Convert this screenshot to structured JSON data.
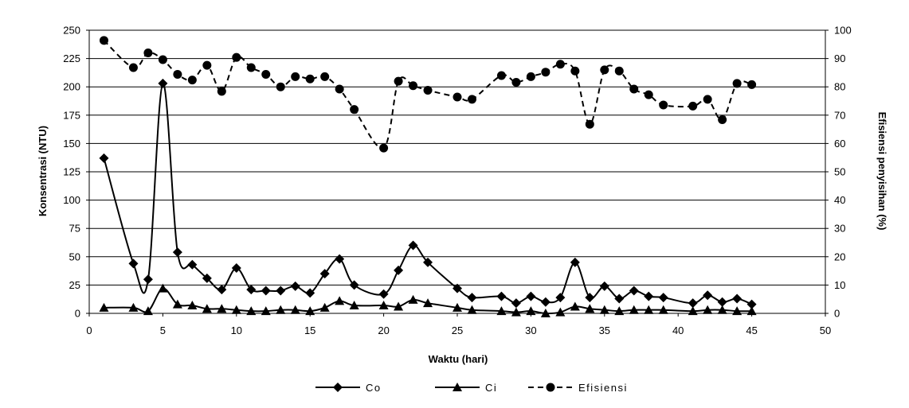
{
  "chart_data": {
    "type": "line",
    "xlabel": "Waktu (hari)",
    "ylabel": "Konsentrasi (NTU)",
    "y2label": "Efisiensi penyisihan (%)",
    "xlim": [
      0,
      50
    ],
    "ylim": [
      0,
      250
    ],
    "y2lim": [
      0,
      100
    ],
    "xticks": [
      "0",
      "5",
      "10",
      "15",
      "20",
      "25",
      "30",
      "35",
      "40",
      "45",
      "50"
    ],
    "yticks": [
      "0",
      "25",
      "50",
      "75",
      "100",
      "125",
      "150",
      "175",
      "200",
      "225",
      "250"
    ],
    "y2ticks": [
      "0",
      "10",
      "20",
      "30",
      "40",
      "50",
      "60",
      "70",
      "80",
      "90",
      "100"
    ],
    "grid": "horizontal",
    "legend_position": "bottom",
    "series": [
      {
        "name": "Co",
        "axis": "left",
        "marker": "diamond",
        "line": "solid",
        "x": [
          1,
          3,
          4,
          5,
          6,
          7,
          8,
          9,
          10,
          11,
          12,
          13,
          14,
          15,
          16,
          17,
          18,
          20,
          21,
          22,
          23,
          25,
          26,
          28,
          29,
          30,
          31,
          32,
          33,
          34,
          35,
          36,
          37,
          38,
          39,
          41,
          42,
          43,
          44,
          45
        ],
        "y": [
          137,
          44,
          30,
          203,
          54,
          43,
          31,
          21,
          40,
          21,
          20,
          20,
          24,
          18,
          35,
          48,
          25,
          17,
          38,
          60,
          45,
          22,
          14,
          15,
          9,
          15,
          10,
          14,
          45,
          14,
          24,
          13,
          20,
          15,
          14,
          9,
          16,
          10,
          13,
          8
        ]
      },
      {
        "name": "Ci",
        "axis": "left",
        "marker": "triangle",
        "line": "solid",
        "x": [
          1,
          3,
          4,
          5,
          6,
          7,
          8,
          9,
          10,
          11,
          12,
          13,
          14,
          15,
          16,
          17,
          18,
          20,
          21,
          22,
          23,
          25,
          26,
          28,
          29,
          30,
          31,
          32,
          33,
          34,
          35,
          36,
          37,
          38,
          39,
          41,
          42,
          43,
          44,
          45
        ],
        "y": [
          5,
          5,
          2,
          22,
          8,
          7,
          4,
          4,
          3,
          2,
          2,
          3,
          3,
          2,
          5,
          11,
          7,
          7,
          6,
          12,
          9,
          5,
          3,
          2,
          1,
          2,
          0,
          1,
          6,
          4,
          3,
          2,
          3,
          3,
          3,
          2,
          3,
          3,
          2,
          2
        ]
      },
      {
        "name": "Efisiensi",
        "axis": "right",
        "marker": "circle",
        "line": "dashed",
        "x": [
          1,
          3,
          4,
          5,
          6,
          7,
          8,
          9,
          10,
          11,
          12,
          13,
          14,
          15,
          16,
          17,
          18,
          20,
          21,
          22,
          23,
          25,
          26,
          28,
          29,
          30,
          31,
          32,
          33,
          34,
          35,
          36,
          37,
          38,
          39,
          41,
          42,
          43,
          44,
          45
        ],
        "y": [
          96.4,
          86.8,
          92.0,
          89.6,
          84.4,
          82.4,
          87.6,
          78.4,
          90.4,
          86.8,
          84.4,
          80.0,
          83.6,
          82.8,
          83.6,
          79.2,
          72.0,
          58.4,
          82.0,
          80.4,
          78.8,
          76.4,
          75.6,
          84.0,
          81.6,
          83.6,
          85.2,
          88.0,
          85.6,
          66.8,
          86.0,
          85.6,
          79.2,
          77.2,
          73.6,
          73.2,
          75.6,
          68.4,
          81.2,
          80.8
        ]
      }
    ]
  }
}
